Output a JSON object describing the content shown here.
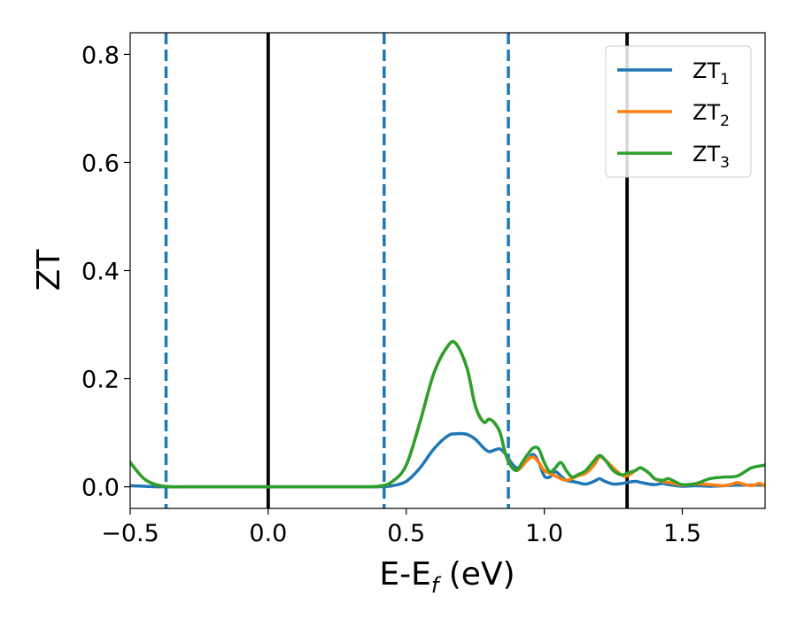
{
  "chart_data": {
    "type": "line",
    "title": "",
    "xlabel": "E-E",
    "xlabel_sub": "f",
    "xlabel_unit": " (eV)",
    "ylabel": "ZT",
    "xlim": [
      -0.5,
      1.8
    ],
    "ylim": [
      -0.04,
      0.84
    ],
    "xticks": [
      -0.5,
      0.0,
      0.5,
      1.0,
      1.5
    ],
    "xtick_labels": [
      "−0.5",
      "0.0",
      "0.5",
      "1.0",
      "1.5"
    ],
    "yticks": [
      0.0,
      0.2,
      0.4,
      0.6,
      0.8
    ],
    "ytick_labels": [
      "0.0",
      "0.2",
      "0.4",
      "0.6",
      "0.8"
    ],
    "grid": false,
    "legend_position": "top-right",
    "vlines": [
      {
        "x": -0.37,
        "style": "dashed",
        "color": "#1f77b4"
      },
      {
        "x": 0.0,
        "style": "solid",
        "color": "#000000"
      },
      {
        "x": 0.42,
        "style": "dashed",
        "color": "#1f77b4"
      },
      {
        "x": 0.87,
        "style": "dashed",
        "color": "#1f77b4"
      },
      {
        "x": 1.3,
        "style": "solid",
        "color": "#000000"
      }
    ],
    "series": [
      {
        "name": "ZT",
        "name_sub": "1",
        "color": "#1f77b4",
        "x": [
          -0.5,
          -0.45,
          -0.4,
          -0.35,
          -0.3,
          0.0,
          0.3,
          0.4,
          0.45,
          0.5,
          0.55,
          0.6,
          0.65,
          0.68,
          0.72,
          0.75,
          0.78,
          0.8,
          0.82,
          0.84,
          0.86,
          0.88,
          0.9,
          0.92,
          0.94,
          0.96,
          0.98,
          1.0,
          1.02,
          1.04,
          1.06,
          1.08,
          1.1,
          1.12,
          1.15,
          1.18,
          1.2,
          1.22,
          1.25,
          1.28,
          1.3,
          1.33,
          1.35,
          1.38,
          1.4,
          1.43,
          1.45,
          1.48,
          1.5,
          1.55,
          1.6,
          1.65,
          1.7,
          1.75,
          1.8
        ],
        "y": [
          0.002,
          0.001,
          0.0,
          0.0,
          0.0,
          0.0,
          0.0,
          0.0,
          0.002,
          0.01,
          0.035,
          0.07,
          0.094,
          0.098,
          0.097,
          0.088,
          0.072,
          0.065,
          0.068,
          0.07,
          0.06,
          0.045,
          0.035,
          0.04,
          0.05,
          0.06,
          0.045,
          0.02,
          0.018,
          0.028,
          0.02,
          0.012,
          0.01,
          0.008,
          0.005,
          0.01,
          0.015,
          0.01,
          0.005,
          0.006,
          0.008,
          0.01,
          0.008,
          0.005,
          0.004,
          0.006,
          0.004,
          0.002,
          0.001,
          0.002,
          0.001,
          0.002,
          0.003,
          0.003,
          0.003
        ]
      },
      {
        "name": "ZT",
        "name_sub": "2",
        "color": "#ff7f0e",
        "x": [
          -0.5,
          -0.45,
          -0.4,
          -0.35,
          -0.3,
          0.0,
          0.3,
          0.4,
          0.45,
          0.5,
          0.55,
          0.6,
          0.65,
          0.68,
          0.72,
          0.75,
          0.78,
          0.8,
          0.82,
          0.84,
          0.86,
          0.88,
          0.9,
          0.92,
          0.94,
          0.96,
          0.98,
          1.0,
          1.02,
          1.04,
          1.06,
          1.08,
          1.1,
          1.12,
          1.15,
          1.18,
          1.2,
          1.22,
          1.25,
          1.28,
          1.3,
          1.33,
          1.35,
          1.38,
          1.4,
          1.43,
          1.45,
          1.48,
          1.5,
          1.55,
          1.6,
          1.62,
          1.65,
          1.68,
          1.7,
          1.72,
          1.75,
          1.78,
          1.8
        ],
        "y": [
          0.045,
          0.015,
          0.003,
          0.0,
          0.0,
          0.0,
          0.0,
          0.001,
          0.01,
          0.04,
          0.12,
          0.21,
          0.26,
          0.265,
          0.22,
          0.15,
          0.12,
          0.125,
          0.118,
          0.1,
          0.06,
          0.038,
          0.03,
          0.038,
          0.05,
          0.055,
          0.045,
          0.03,
          0.025,
          0.02,
          0.015,
          0.012,
          0.015,
          0.02,
          0.025,
          0.04,
          0.055,
          0.05,
          0.035,
          0.022,
          0.02,
          0.03,
          0.035,
          0.025,
          0.015,
          0.01,
          0.008,
          0.005,
          0.003,
          0.005,
          0.004,
          0.003,
          0.002,
          0.005,
          0.008,
          0.005,
          0.002,
          0.006,
          0.001
        ]
      },
      {
        "name": "ZT",
        "name_sub": "3",
        "color": "#2ca02c",
        "x": [
          -0.5,
          -0.45,
          -0.4,
          -0.35,
          -0.3,
          0.0,
          0.3,
          0.4,
          0.45,
          0.5,
          0.55,
          0.6,
          0.65,
          0.68,
          0.72,
          0.75,
          0.78,
          0.8,
          0.82,
          0.84,
          0.86,
          0.88,
          0.9,
          0.92,
          0.94,
          0.96,
          0.98,
          1.0,
          1.02,
          1.04,
          1.06,
          1.08,
          1.1,
          1.12,
          1.15,
          1.18,
          1.2,
          1.22,
          1.25,
          1.28,
          1.3,
          1.33,
          1.35,
          1.38,
          1.4,
          1.43,
          1.45,
          1.48,
          1.5,
          1.55,
          1.6,
          1.65,
          1.7,
          1.75,
          1.8
        ],
        "y": [
          0.045,
          0.015,
          0.003,
          0.0,
          0.0,
          0.0,
          0.0,
          0.001,
          0.01,
          0.04,
          0.12,
          0.21,
          0.26,
          0.265,
          0.22,
          0.15,
          0.12,
          0.125,
          0.118,
          0.1,
          0.06,
          0.038,
          0.03,
          0.045,
          0.06,
          0.072,
          0.07,
          0.045,
          0.028,
          0.035,
          0.045,
          0.03,
          0.018,
          0.022,
          0.03,
          0.048,
          0.058,
          0.05,
          0.03,
          0.022,
          0.025,
          0.03,
          0.035,
          0.025,
          0.015,
          0.012,
          0.015,
          0.008,
          0.004,
          0.006,
          0.015,
          0.018,
          0.02,
          0.035,
          0.04
        ]
      }
    ]
  }
}
